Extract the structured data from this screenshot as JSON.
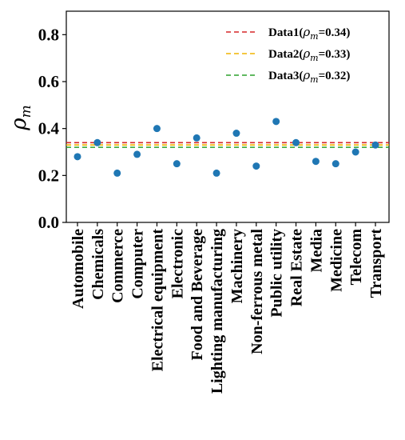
{
  "chart_data": {
    "type": "scatter",
    "ylabel": "ρ_m",
    "ylim": [
      0,
      0.9
    ],
    "yticks": [
      "0.0",
      "0.2",
      "0.4",
      "0.6",
      "0.8"
    ],
    "yticks_values": [
      0.0,
      0.2,
      0.4,
      0.6,
      0.8
    ],
    "categories": [
      "Automobile",
      "Chemicals",
      "Commerce",
      "Computer",
      "Electrical equipment",
      "Electronic",
      "Food and Beverage",
      "Lighting manufacturing",
      "Machinery",
      "Non-ferrous metal",
      "Public utility",
      "Real Estate",
      "Media",
      "Medicine",
      "Telecom",
      "Transport"
    ],
    "values": [
      0.28,
      0.34,
      0.21,
      0.29,
      0.4,
      0.25,
      0.36,
      0.21,
      0.38,
      0.24,
      0.43,
      0.34,
      0.26,
      0.25,
      0.3,
      0.33
    ],
    "point_color": "#1f77b4",
    "reference_lines": [
      {
        "name": "Data1",
        "value": 0.34,
        "color": "#d62728",
        "label_prefix": "Data1(",
        "label_symbol": "ρ",
        "label_sub": "m",
        "label_suffix": "=0.34)"
      },
      {
        "name": "Data2",
        "value": 0.33,
        "color": "#f0b400",
        "label_prefix": "Data2(",
        "label_symbol": "ρ",
        "label_sub": "m",
        "label_suffix": "=0.33)"
      },
      {
        "name": "Data3",
        "value": 0.32,
        "color": "#2ca02c",
        "label_prefix": "Data3(",
        "label_symbol": "ρ",
        "label_sub": "m",
        "label_suffix": "=0.32)"
      }
    ],
    "legend_position": "top-right",
    "grid": false
  }
}
